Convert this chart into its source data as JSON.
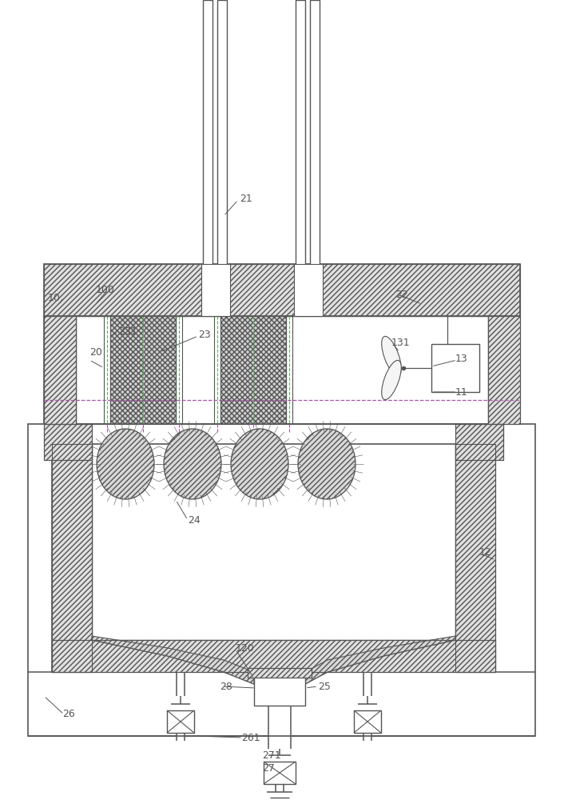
{
  "bg": "#ffffff",
  "lc": "#555555",
  "green": "#5ab55a",
  "purple": "#aa55aa",
  "fig_w": 7.06,
  "fig_h": 10.0,
  "dpi": 100
}
